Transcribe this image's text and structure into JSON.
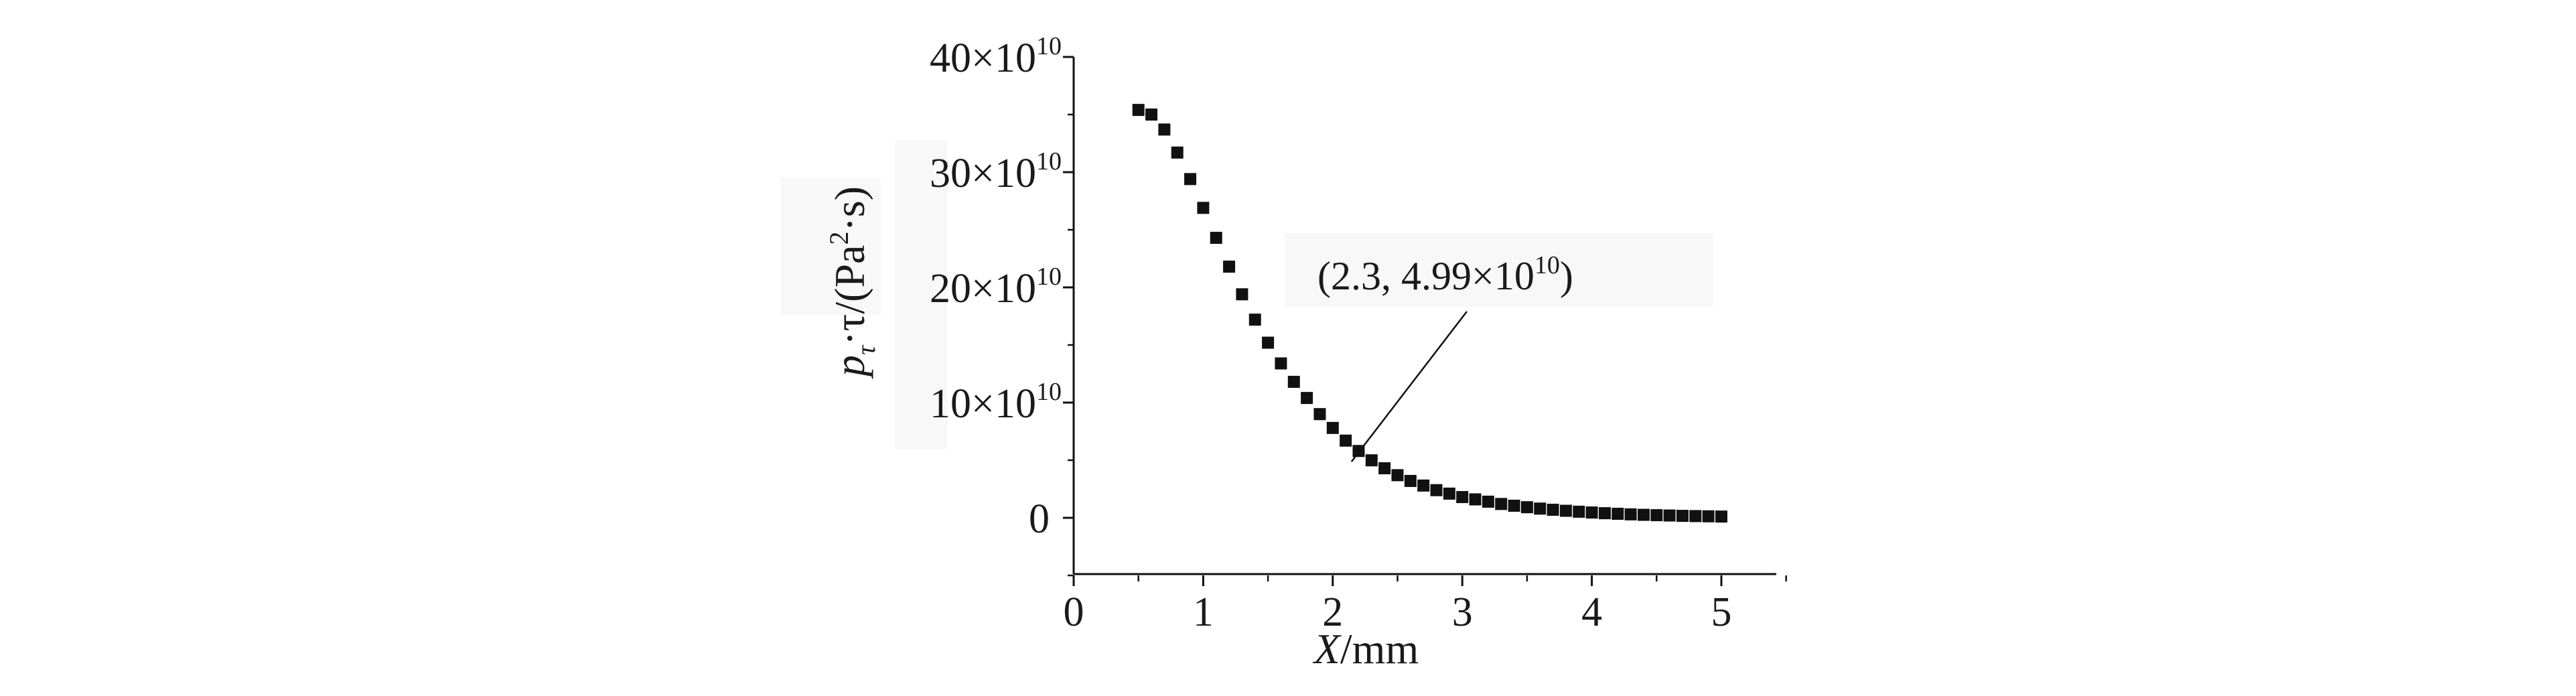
{
  "chart_data": {
    "type": "scatter",
    "xlabel": {
      "var": "X",
      "unit": "/mm"
    },
    "ylabel": {
      "p": "p",
      "sub": "τ",
      "mid": "·τ/(Pa",
      "sup": "2",
      "end": "·s)"
    },
    "xlim": [
      0,
      5.5
    ],
    "ylim": [
      -5,
      40
    ],
    "y_scale_factor": "×10",
    "y_scale_exponent": "10",
    "xticks": [
      {
        "value": 0,
        "label": "0"
      },
      {
        "value": 1,
        "label": "1"
      },
      {
        "value": 2,
        "label": "2"
      },
      {
        "value": 3,
        "label": "3"
      },
      {
        "value": 4,
        "label": "4"
      },
      {
        "value": 5,
        "label": "5"
      }
    ],
    "yticks": [
      {
        "value": 0,
        "label": "0"
      },
      {
        "value": 10,
        "label": "10×10"
      },
      {
        "value": 20,
        "label": "20×10"
      },
      {
        "value": 30,
        "label": "30×10"
      },
      {
        "value": 40,
        "label": "40×10"
      }
    ],
    "grid": false,
    "marker": "square",
    "color": "#111111",
    "series": [
      {
        "x": [
          0.5,
          0.6,
          0.7,
          0.8,
          0.9,
          1.0,
          1.1,
          1.2,
          1.3,
          1.4,
          1.5,
          1.6,
          1.7,
          1.8,
          1.9,
          2.0,
          2.1,
          2.2,
          2.3,
          2.4,
          2.5,
          2.6,
          2.7,
          2.8,
          2.9,
          3.0,
          3.1,
          3.2,
          3.3,
          3.4,
          3.5,
          3.6,
          3.7,
          3.8,
          3.9,
          4.0,
          4.1,
          4.2,
          4.3,
          4.4,
          4.5,
          4.6,
          4.7,
          4.8,
          4.9,
          5.0
        ],
        "y": [
          35.4,
          35.0,
          33.7,
          31.7,
          29.4,
          26.9,
          24.3,
          21.8,
          19.4,
          17.2,
          15.2,
          13.4,
          11.8,
          10.4,
          9.0,
          7.8,
          6.7,
          5.8,
          4.99,
          4.3,
          3.7,
          3.2,
          2.8,
          2.4,
          2.1,
          1.8,
          1.6,
          1.4,
          1.2,
          1.05,
          0.92,
          0.8,
          0.7,
          0.61,
          0.53,
          0.46,
          0.4,
          0.35,
          0.3,
          0.26,
          0.23,
          0.2,
          0.17,
          0.15,
          0.13,
          0.11
        ]
      }
    ],
    "annotation": {
      "text": "(2.3, 4.99×10",
      "sup": "10",
      "close": ")",
      "x": 2.3,
      "y": 4.99
    }
  }
}
